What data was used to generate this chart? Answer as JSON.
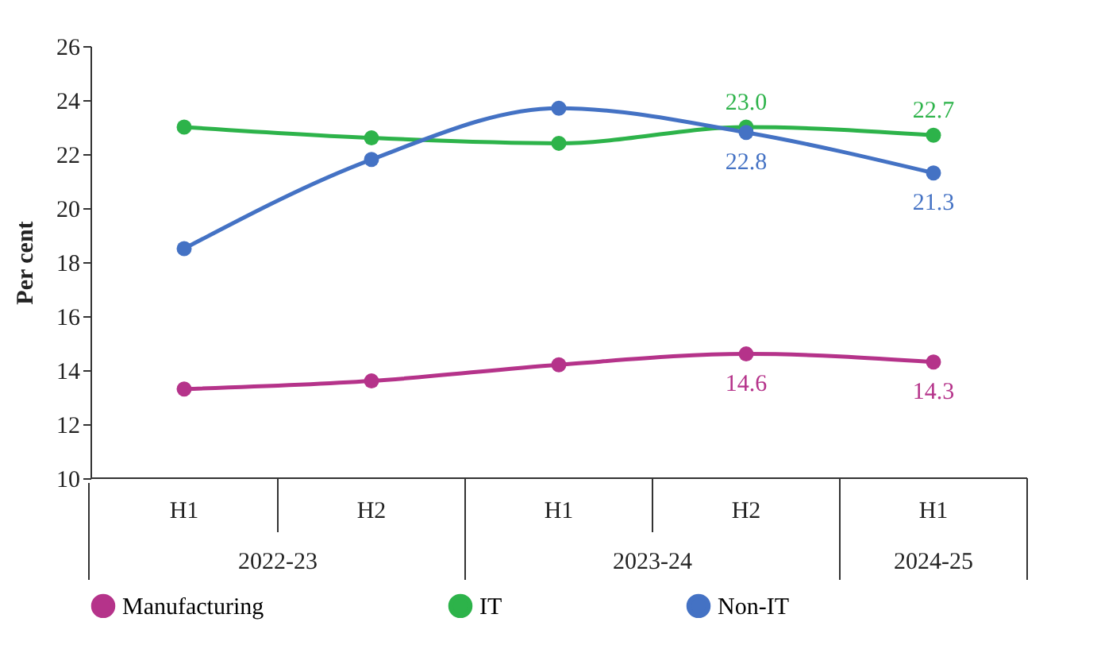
{
  "chart_data": {
    "type": "line",
    "ylabel": "Per cent",
    "categories": [
      "H1",
      "H2",
      "H1",
      "H2",
      "H1"
    ],
    "annotations": [
      "2022-23",
      "2023-24",
      "2024-25"
    ],
    "series": [
      {
        "name": "Manufacturing",
        "color": "#b5338a",
        "values": [
          13.3,
          13.6,
          14.2,
          14.6,
          14.3
        ],
        "value_labels": [
          null,
          null,
          null,
          "14.6",
          "14.3"
        ]
      },
      {
        "name": "IT",
        "color": "#2db34a",
        "values": [
          23.0,
          22.6,
          22.4,
          23.0,
          22.7
        ],
        "value_labels": [
          null,
          null,
          null,
          "23.0",
          "22.7"
        ]
      },
      {
        "name": "Non-IT",
        "color": "#4472c4",
        "values": [
          18.5,
          21.8,
          23.7,
          22.8,
          21.3
        ],
        "value_labels": [
          null,
          null,
          null,
          "22.8",
          "21.3"
        ]
      }
    ],
    "ylim": [
      10,
      26
    ],
    "yticks": [
      10,
      12,
      14,
      16,
      18,
      20,
      22,
      24,
      26
    ],
    "grid": false,
    "legend": "bottom",
    "marker": "circle",
    "line_style": "solid"
  }
}
